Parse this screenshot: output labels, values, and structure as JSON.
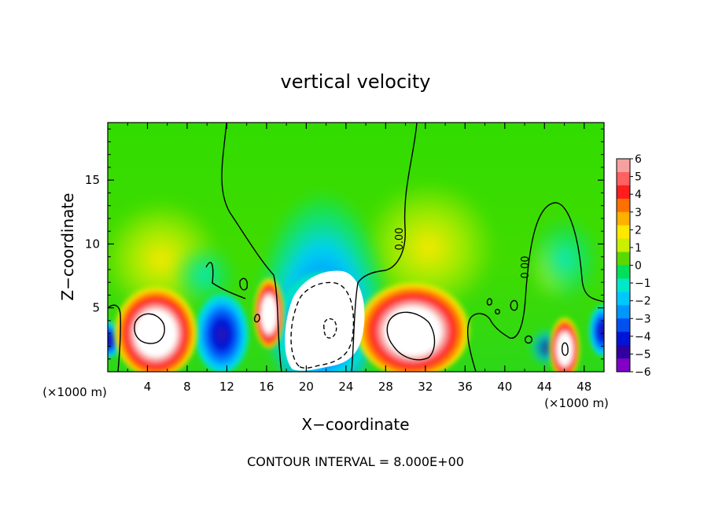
{
  "chart_data": {
    "type": "heatmap",
    "title": "vertical velocity",
    "xlabel": "X−coordinate",
    "ylabel": "Z−coordinate",
    "x_unit_label": "(×1000 m)",
    "z_unit_label": "(×1000 m)",
    "footer": "CONTOUR INTERVAL = 8.000E+00",
    "xlim": [
      0,
      50
    ],
    "ylim": [
      0,
      19.5
    ],
    "x_ticks": [
      "4",
      "8",
      "12",
      "16",
      "20",
      "24",
      "28",
      "32",
      "36",
      "40",
      "44",
      "48"
    ],
    "y_ticks": [
      "5",
      "10",
      "15"
    ],
    "colorbar": {
      "ticks": [
        "6",
        "5",
        "4",
        "3",
        "2",
        "1",
        "0",
        "−1",
        "−2",
        "−3",
        "−4",
        "−5",
        "−6"
      ],
      "colors": [
        "#f7a0a0",
        "#ff6060",
        "#ff1d1d",
        "#ff7000",
        "#ffb000",
        "#ffe800",
        "#c8f000",
        "#5ad800",
        "#00e05a",
        "#00e8c8",
        "#00c8ff",
        "#0096ff",
        "#0050f0",
        "#0014d8",
        "#3000a0",
        "#8000c8"
      ]
    },
    "contour_labels": [
      "0.00",
      "0.00"
    ],
    "features": [
      {
        "x": 4.5,
        "z": 3.0,
        "value": 8,
        "sign": "up"
      },
      {
        "x": 11.5,
        "z": 2.6,
        "value": -5,
        "sign": "down"
      },
      {
        "x": 16.8,
        "z": 4.1,
        "value": 6,
        "sign": "up"
      },
      {
        "x": 21.0,
        "z": 4.0,
        "value": -8,
        "sign": "down"
      },
      {
        "x": 31.0,
        "z": 3.2,
        "value": 8,
        "sign": "up"
      },
      {
        "x": 46.0,
        "z": 1.6,
        "value": 8,
        "sign": "up"
      },
      {
        "x": 49.5,
        "z": 3.0,
        "value": -5,
        "sign": "down"
      }
    ]
  }
}
